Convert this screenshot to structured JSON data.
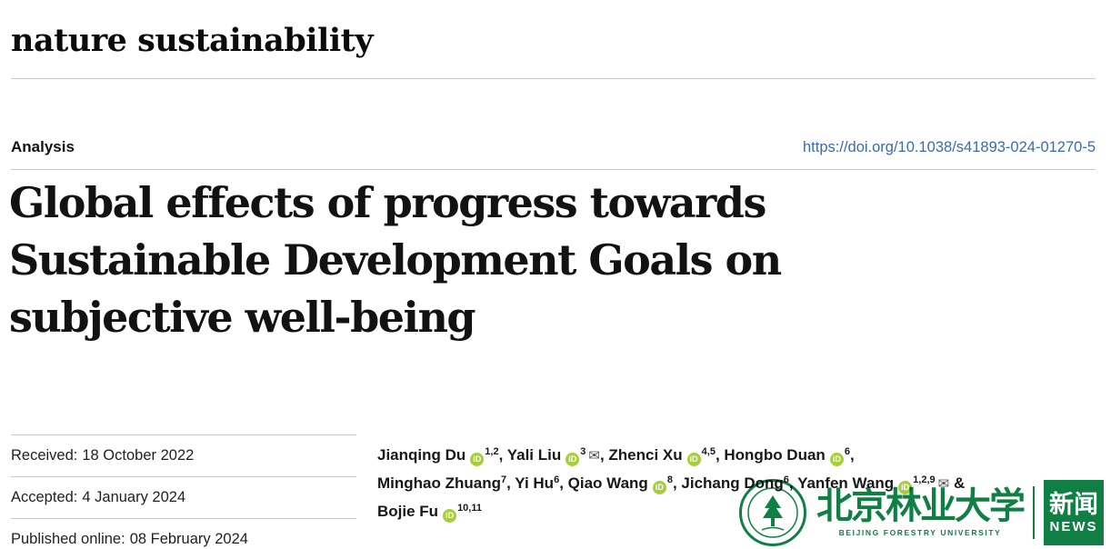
{
  "journal": {
    "wordmark": "nature sustainability"
  },
  "header": {
    "article_type": "Analysis",
    "doi": "https://doi.org/10.1038/s41893-024-01270-5"
  },
  "title_lines": [
    "Global effects of progress towards",
    "Sustainable Development Goals on",
    "subjective well-being"
  ],
  "dates": [
    {
      "label": "Received:",
      "value": "18 October 2022"
    },
    {
      "label": "Accepted:",
      "value": "4 January 2024"
    },
    {
      "label": "Published online:",
      "value": "08 February 2024"
    }
  ],
  "authors": {
    "orcid_icon": "iD",
    "mail_icon": "✉",
    "list": [
      {
        "name": "Jianqing Du",
        "orcid": true,
        "sup": "1,2",
        "mail": false,
        "suffix": ", ",
        "break_after": false
      },
      {
        "name": "Yali Liu",
        "orcid": true,
        "sup": "3",
        "mail": true,
        "suffix": ", ",
        "break_after": false
      },
      {
        "name": "Zhenci Xu",
        "orcid": true,
        "sup": "4,5",
        "mail": false,
        "suffix": ", ",
        "break_after": false
      },
      {
        "name": "Hongbo Duan",
        "orcid": true,
        "sup": "6",
        "mail": false,
        "suffix": ",",
        "break_after": true
      },
      {
        "name": "Minghao Zhuang",
        "orcid": false,
        "sup": "7",
        "mail": false,
        "suffix": ", ",
        "break_after": false
      },
      {
        "name": "Yi Hu",
        "orcid": false,
        "sup": "6",
        "mail": false,
        "suffix": ", ",
        "break_after": false
      },
      {
        "name": "Qiao Wang",
        "orcid": true,
        "sup": "8",
        "mail": false,
        "suffix": ", ",
        "break_after": false
      },
      {
        "name": "Jichang Dong",
        "orcid": false,
        "sup": "6",
        "mail": false,
        "suffix": ", ",
        "break_after": false
      },
      {
        "name": "Yanfen Wang",
        "orcid": true,
        "sup": "1,2,9",
        "mail": true,
        "suffix": " &",
        "break_after": true
      },
      {
        "name": "Bojie Fu",
        "orcid": true,
        "sup": "10,11",
        "mail": false,
        "suffix": "",
        "break_after": false
      }
    ]
  },
  "watermark": {
    "university_zh": "北京林业大学",
    "university_en": "BEIJING FORESTRY UNIVERSITY",
    "news_zh": "新闻",
    "news_en": "NEWS"
  },
  "colors": {
    "link_blue": "#3a6bb0",
    "orcid_green": "#a6ce39",
    "watermark_green": "#0f7f44",
    "rule_gray": "#c9c9c9"
  }
}
